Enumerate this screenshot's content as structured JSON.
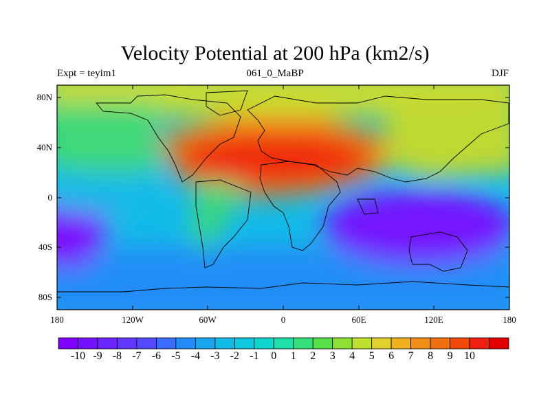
{
  "title": "Velocity Potential at 200 hPa (km2/s)",
  "subtitle": {
    "left": "Expt = teyim1",
    "center": "061_0_MaBP",
    "right": "DJF"
  },
  "y_axis_labels": [
    "80N",
    "40N",
    "0",
    "40S",
    "80S"
  ],
  "x_axis_labels": [
    "180",
    "120W",
    "60W",
    "0",
    "60E",
    "120E",
    "180"
  ],
  "colorbar": {
    "labels": [
      "-10",
      "-9",
      "-8",
      "-7",
      "-6",
      "-5",
      "-4",
      "-3",
      "-2",
      "-1",
      "0",
      "1",
      "2",
      "3",
      "4",
      "5",
      "6",
      "7",
      "8",
      "9",
      "10"
    ],
    "colors": [
      "#7f00ff",
      "#7412ff",
      "#6a24ff",
      "#5f37ff",
      "#5449ff",
      "#3a6cff",
      "#238df7",
      "#1aa6ef",
      "#12bae7",
      "#10c8df",
      "#11d6ce",
      "#1ee0a8",
      "#35e07a",
      "#58e048",
      "#8ee035",
      "#c0e030",
      "#e0d030",
      "#f0b020",
      "#f09018",
      "#f07010",
      "#f04808",
      "#f02010",
      "#e00000"
    ]
  }
}
